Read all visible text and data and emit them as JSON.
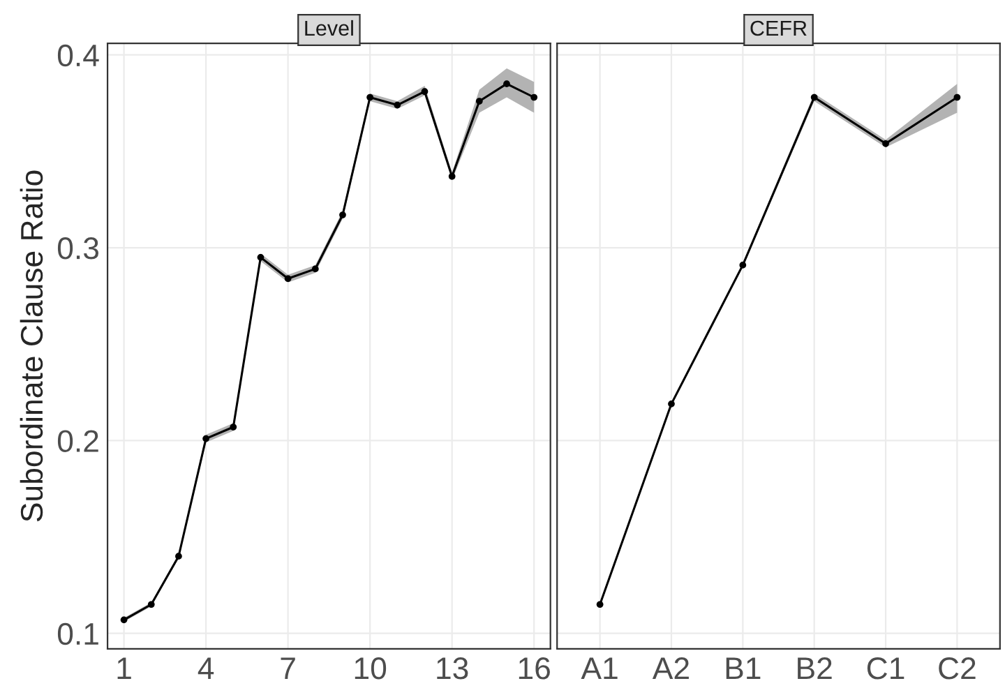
{
  "chart_data": [
    {
      "type": "line",
      "title": "Level",
      "ylabel": "Subordinate Clause Ratio",
      "x": [
        1,
        2,
        3,
        4,
        5,
        6,
        7,
        8,
        9,
        10,
        11,
        12,
        13,
        14,
        15,
        16
      ],
      "xlim": [
        0.4,
        16.6
      ],
      "xticks": [
        1,
        4,
        7,
        10,
        13,
        16
      ],
      "ylim": [
        0.092,
        0.406
      ],
      "yticks": [
        0.1,
        0.2,
        0.3,
        0.4
      ],
      "grid": true,
      "marker": "circle",
      "line_style": "solid",
      "series": [
        {
          "color": "#000000",
          "values": [
            0.107,
            0.115,
            0.14,
            0.201,
            0.207,
            0.295,
            0.284,
            0.289,
            0.317,
            0.378,
            0.374,
            0.381,
            0.337,
            0.376,
            0.385,
            0.378
          ],
          "lower": [
            0.106,
            0.114,
            0.139,
            0.199,
            0.205,
            0.293,
            0.282,
            0.287,
            0.315,
            0.376,
            0.372,
            0.379,
            0.335,
            0.37,
            0.378,
            0.37
          ],
          "upper": [
            0.108,
            0.116,
            0.141,
            0.203,
            0.209,
            0.297,
            0.286,
            0.291,
            0.319,
            0.38,
            0.376,
            0.384,
            0.339,
            0.382,
            0.393,
            0.386
          ]
        }
      ]
    },
    {
      "type": "line",
      "title": "CEFR",
      "categories": [
        "A1",
        "A2",
        "B1",
        "B2",
        "C1",
        "C2"
      ],
      "ylim": [
        0.092,
        0.406
      ],
      "tick_labels": "x",
      "grid": true,
      "marker": "circle",
      "line_style": "solid",
      "series": [
        {
          "color": "#000000",
          "values": [
            0.115,
            0.219,
            0.291,
            0.378,
            0.354,
            0.378
          ],
          "lower": [
            0.114,
            0.218,
            0.29,
            0.376,
            0.352,
            0.37
          ],
          "upper": [
            0.116,
            0.22,
            0.292,
            0.38,
            0.356,
            0.385
          ]
        }
      ]
    }
  ]
}
